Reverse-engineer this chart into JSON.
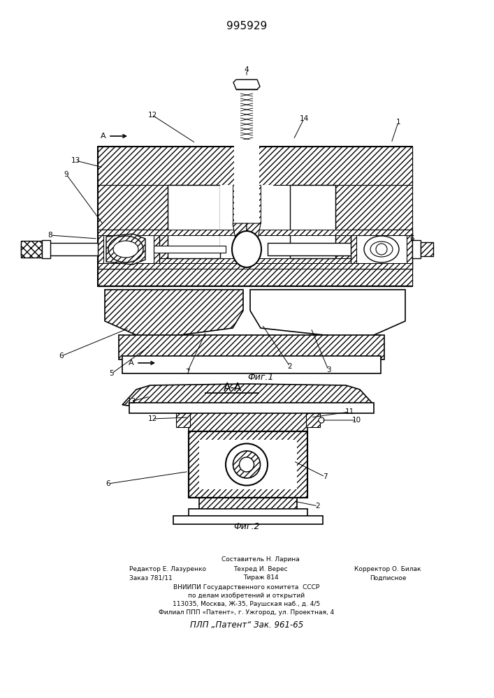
{
  "patent_number": "995929",
  "title_fig1": "Фиг.1",
  "title_fig2": "Фиг.2",
  "section_label": "А-А",
  "bg_color": "#ffffff",
  "footer_col1_line1": "Редактор Е. Лазуренко",
  "footer_col1_line2": "Заказ 781/11",
  "footer_col2_line0": "Составитель Н. Ларина",
  "footer_col2_line1": "Техред И. Верес",
  "footer_col2_line2": "Тираж 814",
  "footer_col3_line1": "Корректор О. Билак",
  "footer_col3_line2": "Подписное",
  "footer_vniip1": "ВНИИПИ Государственного комитета  СССР",
  "footer_vniip2": "по делам изобретений и открытий",
  "footer_addr1": "113035, Москва, Ж-35, Раушская наб., д. 4/5",
  "footer_addr2": "Филиал ППП «Патент», г. Ужгород, ул. Проектная, 4",
  "footer_plp": "ПЛП „Патент“ Зак. 961-65"
}
